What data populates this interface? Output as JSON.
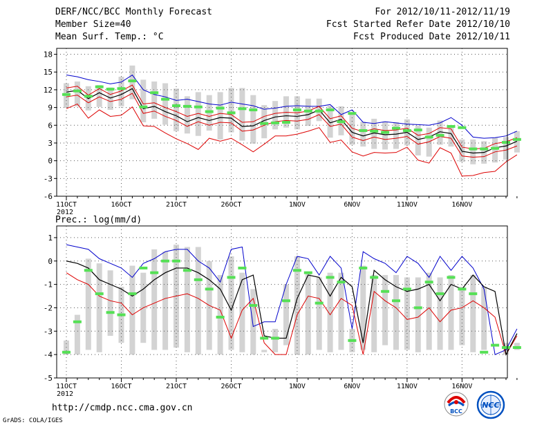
{
  "header": {
    "title": "DERF/NCC/BCC Monthly Forecast",
    "member_size": "Member Size=40",
    "variable": "Mean Surf. Temp.: °C",
    "period": "For 2012/10/11-2012/11/19",
    "started": "Fcst Started Refer Date 2012/10/10",
    "produced": "Fcst Produced Date 2012/10/11"
  },
  "footer": {
    "url": "http://cmdp.ncc.cma.gov.cn",
    "credit": "GrADS: COLA/IGES",
    "logo_left": "BCC",
    "logo_right": "NCC"
  },
  "colors": {
    "max_line": "#0000cc",
    "min_line": "#dd0000",
    "mean_line": "#000000",
    "spread_line": "#dd0000",
    "box": "#d3d3d3",
    "obs": "#55e055",
    "grid": "#555555"
  },
  "chart_data": [
    {
      "type": "line",
      "title": "",
      "ylabel": "Mean Surf. Temp.: °C",
      "ylim": [
        -6,
        19
      ],
      "yticks": [
        -6,
        -3,
        0,
        3,
        6,
        9,
        12,
        15,
        18
      ],
      "xticks": [
        {
          "day": 0,
          "label": "11OCT",
          "sub": "2012"
        },
        {
          "day": 5,
          "label": "16OCT",
          "sub": ""
        },
        {
          "day": 10,
          "label": "21OCT",
          "sub": ""
        },
        {
          "day": 15,
          "label": "26OCT",
          "sub": ""
        },
        {
          "day": 21,
          "label": "1NOV",
          "sub": ""
        },
        {
          "day": 26,
          "label": "6NOV",
          "sub": ""
        },
        {
          "day": 31,
          "label": "11NOV",
          "sub": ""
        },
        {
          "day": 36,
          "label": "16NOV",
          "sub": ""
        }
      ],
      "series": [
        {
          "name": "max",
          "values": [
            14.5,
            14.2,
            13.7,
            13.4,
            13.0,
            13.3,
            14.5,
            12.0,
            11.2,
            10.8,
            10.2,
            10.4,
            10.0,
            9.6,
            9.4,
            9.9,
            9.6,
            9.3,
            8.7,
            8.9,
            9.2,
            9.3,
            9.2,
            9.2,
            9.5,
            7.8,
            8.6,
            6.5,
            6.3,
            6.6,
            6.4,
            6.2,
            6.1,
            6.0,
            6.4,
            7.3,
            6.0,
            4.0,
            3.8,
            3.9,
            4.2,
            5.0
          ]
        },
        {
          "name": "upper",
          "values": [
            12.3,
            12.6,
            11.1,
            12.2,
            11.2,
            11.8,
            12.8,
            9.6,
            9.8,
            9.0,
            8.3,
            7.5,
            8.0,
            7.5,
            8.0,
            7.8,
            6.5,
            6.6,
            7.5,
            8.0,
            8.2,
            8.1,
            8.4,
            9.2,
            7.1,
            7.6,
            5.5,
            4.9,
            5.4,
            5.1,
            5.2,
            5.5,
            4.3,
            4.6,
            5.6,
            5.4,
            2.3,
            2.0,
            2.1,
            2.9,
            3.2,
            3.9
          ]
        },
        {
          "name": "mean",
          "values": [
            11.6,
            11.9,
            10.5,
            11.5,
            10.6,
            11.2,
            12.2,
            8.8,
            9.2,
            8.3,
            7.6,
            6.6,
            7.3,
            6.8,
            7.3,
            7.2,
            5.8,
            5.9,
            6.8,
            7.4,
            7.6,
            7.5,
            7.8,
            8.6,
            6.4,
            7.0,
            4.8,
            4.2,
            4.7,
            4.4,
            4.5,
            4.8,
            3.6,
            4.0,
            4.9,
            4.6,
            1.6,
            1.3,
            1.4,
            2.2,
            2.5,
            3.3
          ]
        },
        {
          "name": "lower",
          "values": [
            10.8,
            11.1,
            9.8,
            10.8,
            10.0,
            10.4,
            11.4,
            8.0,
            8.4,
            7.5,
            6.8,
            5.8,
            6.6,
            6.0,
            6.5,
            6.4,
            5.0,
            5.2,
            6.0,
            6.6,
            6.8,
            6.7,
            7.0,
            7.8,
            5.8,
            6.2,
            4.0,
            3.4,
            4.0,
            3.6,
            3.8,
            4.1,
            2.8,
            3.2,
            4.1,
            3.8,
            0.8,
            0.6,
            0.7,
            1.5,
            1.8,
            2.5
          ]
        },
        {
          "name": "min",
          "values": [
            8.8,
            9.6,
            7.2,
            8.6,
            7.5,
            7.7,
            9.1,
            5.9,
            5.8,
            4.7,
            3.7,
            2.9,
            1.9,
            3.8,
            3.3,
            3.8,
            2.7,
            1.5,
            2.8,
            4.2,
            4.2,
            4.5,
            5.0,
            5.6,
            3.1,
            3.5,
            1.5,
            0.8,
            1.4,
            1.3,
            1.4,
            2.3,
            0.1,
            -0.4,
            2.2,
            1.3,
            -2.6,
            -2.5,
            -2.0,
            -1.8,
            -0.2,
            1.0
          ]
        },
        {
          "name": "box_top",
          "values": [
            13.1,
            13.4,
            12.6,
            12.8,
            12.4,
            14.2,
            16.1,
            13.7,
            13.4,
            13.1,
            12.2,
            10.9,
            11.6,
            11.1,
            11.6,
            12.3,
            12.3,
            11.1,
            9.4,
            10.1,
            10.9,
            10.9,
            10.5,
            10.5,
            9.3,
            9.2,
            7.8,
            6.6,
            7.1,
            6.6,
            6.5,
            7.0,
            5.9,
            5.6,
            6.8,
            6.0,
            3.6,
            3.6,
            3.3,
            3.9,
            4.0,
            5.0
          ]
        },
        {
          "name": "box_bottom",
          "values": [
            9.0,
            9.2,
            8.5,
            9.1,
            8.6,
            9.2,
            10.4,
            6.5,
            7.1,
            6.1,
            5.0,
            4.6,
            4.2,
            5.1,
            3.6,
            4.8,
            3.4,
            2.9,
            3.8,
            5.3,
            5.6,
            5.3,
            5.9,
            6.7,
            3.9,
            4.3,
            2.7,
            2.4,
            2.0,
            1.9,
            2.0,
            2.6,
            0.9,
            0.7,
            2.7,
            2.4,
            -0.2,
            -0.6,
            -0.5,
            -0.3,
            0.2,
            1.4
          ]
        },
        {
          "name": "obs",
          "values": [
            11.2,
            11.8,
            10.9,
            12.5,
            12.1,
            12.2,
            13.5,
            9.1,
            11.5,
            10.4,
            9.3,
            9.2,
            9.1,
            8.3,
            8.9,
            8.1,
            8.8,
            8.6,
            6.3,
            6.4,
            6.5,
            8.6,
            8.4,
            8.4,
            8.6,
            6.6,
            8.0,
            5.1,
            5.0,
            4.8,
            5.5,
            5.1,
            5.2,
            4.0,
            4.3,
            5.8,
            5.6,
            2.0,
            2.0,
            2.1,
            3.1,
            3.6
          ]
        }
      ]
    },
    {
      "type": "line",
      "title": "",
      "ylabel": "Prec.: log(mm/d)",
      "ylim": [
        -5,
        1.5
      ],
      "yticks": [
        -5,
        -4,
        -3,
        -2,
        -1,
        0,
        1
      ],
      "xticks": [
        {
          "day": 0,
          "label": "11OCT",
          "sub": "2012"
        },
        {
          "day": 5,
          "label": "16OCT",
          "sub": ""
        },
        {
          "day": 10,
          "label": "21OCT",
          "sub": ""
        },
        {
          "day": 15,
          "label": "26OCT",
          "sub": ""
        },
        {
          "day": 21,
          "label": "1NOV",
          "sub": ""
        },
        {
          "day": 26,
          "label": "6NOV",
          "sub": ""
        },
        {
          "day": 31,
          "label": "11NOV",
          "sub": ""
        },
        {
          "day": 36,
          "label": "16NOV",
          "sub": ""
        }
      ],
      "series": [
        {
          "name": "max",
          "values": [
            0.7,
            0.6,
            0.5,
            0.1,
            -0.1,
            -0.3,
            -0.7,
            -0.1,
            0.1,
            0.4,
            0.5,
            0.5,
            0.0,
            -0.3,
            -0.9,
            0.5,
            0.6,
            -2.8,
            -2.6,
            -2.6,
            -1.0,
            0.2,
            0.1,
            -0.6,
            0.2,
            -0.3,
            -2.9,
            0.4,
            0.1,
            -0.1,
            -0.5,
            0.2,
            -0.1,
            -0.7,
            0.2,
            -0.4,
            0.2,
            -0.3,
            -1.2,
            -4.0,
            -3.8,
            -2.9
          ]
        },
        {
          "name": "mean",
          "values": [
            0.0,
            -0.1,
            -0.3,
            -0.8,
            -1.0,
            -1.2,
            -1.5,
            -1.2,
            -0.8,
            -0.5,
            -0.3,
            -0.3,
            -0.5,
            -0.8,
            -1.2,
            -2.1,
            -0.8,
            -0.6,
            -3.2,
            -3.3,
            -3.3,
            -1.6,
            -0.6,
            -0.7,
            -1.5,
            -0.7,
            -1.1,
            -3.5,
            -0.4,
            -0.8,
            -1.1,
            -1.3,
            -1.2,
            -1.0,
            -1.7,
            -1.0,
            -1.2,
            -0.6,
            -1.1,
            -1.3,
            -4.0,
            -3.1
          ]
        },
        {
          "name": "min",
          "values": [
            -0.5,
            -0.8,
            -1.0,
            -1.5,
            -1.7,
            -1.8,
            -2.3,
            -2.0,
            -1.8,
            -1.6,
            -1.5,
            -1.4,
            -1.6,
            -1.9,
            -2.1,
            -3.3,
            -2.1,
            -1.6,
            -3.5,
            -4.0,
            -4.0,
            -2.3,
            -1.5,
            -1.6,
            -2.3,
            -1.6,
            -1.9,
            -4.0,
            -1.3,
            -1.7,
            -2.0,
            -2.5,
            -2.4,
            -2.0,
            -2.6,
            -2.1,
            -2.0,
            -1.7,
            -2.0,
            -2.4,
            -4.0,
            -3.2
          ]
        },
        {
          "name": "box_top",
          "values": [
            -3.4,
            -2.3,
            0.1,
            -0.1,
            -0.4,
            -1.1,
            -0.2,
            -0.5,
            0.5,
            0.4,
            0.7,
            0.6,
            0.6,
            0.0,
            -0.6,
            0.2,
            -0.5,
            -1.2,
            -3.8,
            -2.9,
            -1.0,
            0.2,
            -0.5,
            -0.7,
            -0.5,
            -0.5,
            -2.9,
            -0.2,
            -0.6,
            -0.6,
            -0.6,
            -0.7,
            -0.7,
            -0.5,
            -0.7,
            -0.6,
            -1.1,
            -0.6,
            -1.1,
            -4.0,
            -3.5,
            -3.5
          ]
        },
        {
          "name": "box_bottom",
          "values": [
            -4.0,
            -4.0,
            -3.8,
            -3.9,
            -3.2,
            -3.5,
            -4.0,
            -3.5,
            -3.8,
            -3.8,
            -3.7,
            -3.9,
            -4.0,
            -3.8,
            -4.0,
            -3.8,
            -3.9,
            -4.0,
            -3.9,
            -3.9,
            -3.6,
            -4.0,
            -4.0,
            -3.8,
            -3.9,
            -3.8,
            -3.9,
            -3.8,
            -3.9,
            -3.6,
            -3.8,
            -3.8,
            -3.9,
            -3.8,
            -3.8,
            -3.8,
            -3.6,
            -3.9,
            -3.8,
            -4.0,
            -4.0,
            -3.8
          ]
        },
        {
          "name": "obs",
          "values": [
            -3.9,
            -2.6,
            -0.4,
            -1.4,
            -2.2,
            -2.3,
            -1.4,
            -0.3,
            -0.5,
            0.0,
            0.0,
            -0.4,
            -0.8,
            -1.2,
            -2.4,
            -0.7,
            -0.3,
            -1.9,
            -3.3,
            -3.3,
            -1.7,
            -0.4,
            -0.5,
            -1.8,
            -0.7,
            -0.9,
            -3.4,
            -0.3,
            -0.7,
            -1.3,
            -1.7,
            -1.2,
            -2.0,
            -0.9,
            -1.4,
            -0.7,
            -1.2,
            -1.4,
            -3.9,
            -3.6,
            -3.7,
            -3.7
          ]
        }
      ]
    }
  ]
}
